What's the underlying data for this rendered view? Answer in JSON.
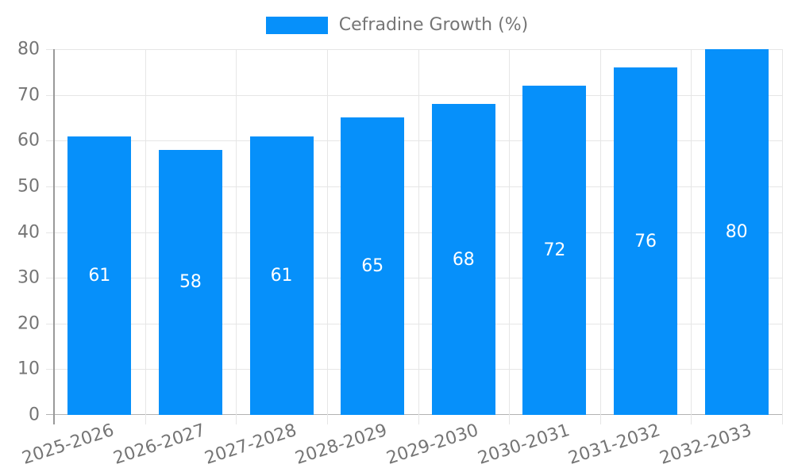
{
  "legend": {
    "label": "Cefradine Growth (%)"
  },
  "colors": {
    "bar": "#0690fa",
    "grid": "#e6e6e6",
    "axis_y": "#999999",
    "axis_x": "#b3b3b3",
    "text": "#757575",
    "value_label": "#ffffff",
    "background": "#ffffff"
  },
  "chart_data": {
    "type": "bar",
    "title": "Cefradine Growth (%)",
    "categories": [
      "2025-2026",
      "2026-2027",
      "2027-2028",
      "2028-2029",
      "2029-2030",
      "2030-2031",
      "2031-2032",
      "2032-2033"
    ],
    "series": [
      {
        "name": "Cefradine Growth (%)",
        "values": [
          61,
          58,
          61,
          65,
          68,
          72,
          76,
          80
        ]
      }
    ],
    "values": [
      61,
      58,
      61,
      65,
      68,
      72,
      76,
      80
    ],
    "xlabel": "",
    "ylabel": "",
    "ylim": [
      0,
      80
    ],
    "yticks": [
      0,
      10,
      20,
      30,
      40,
      50,
      60,
      70,
      80
    ],
    "grid": true,
    "legend_position": "top",
    "x_label_rotation_deg": -18,
    "value_label_position": "inside-center"
  }
}
